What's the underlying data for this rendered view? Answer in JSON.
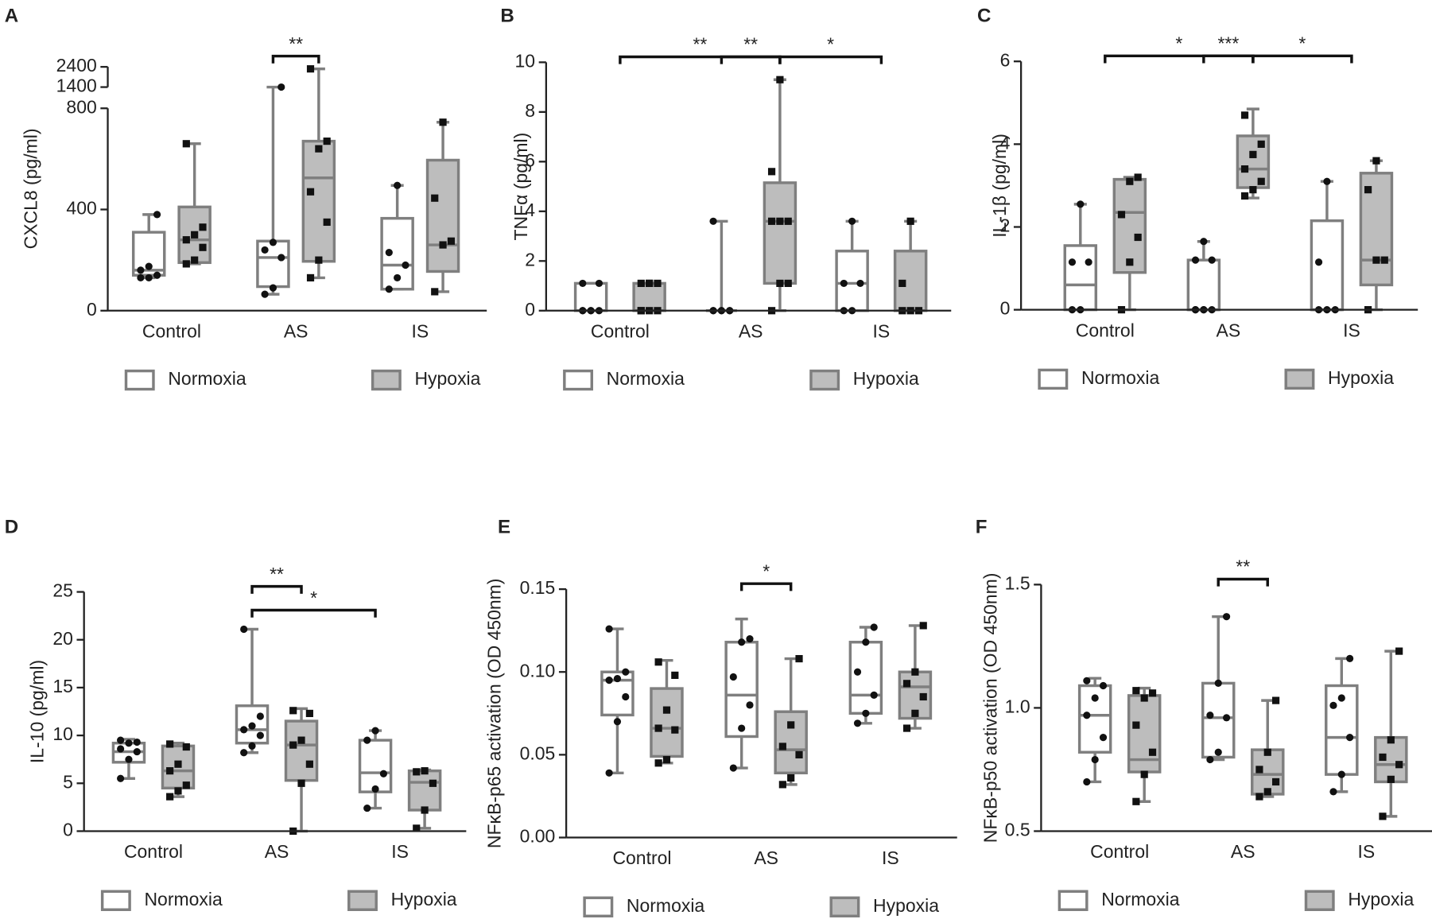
{
  "chart_data": [
    {
      "type": "box",
      "panel": "A",
      "ylabel": "CXCL8 (pg/ml)",
      "categories": [
        "Control",
        "AS",
        "IS"
      ],
      "ylim": [
        0,
        2400
      ],
      "axis_break": [
        800,
        1400
      ],
      "yticks": [
        0,
        400,
        800,
        1400,
        2400
      ],
      "series": [
        {
          "name": "Normoxia",
          "color": "#ffffff",
          "edgecolor": "#7f7f7f",
          "marker": "circle",
          "boxes": [
            {
              "min": 130,
              "q1": 140,
              "median": 160,
              "q3": 310,
              "max": 380,
              "points": [
                130,
                130,
                140,
                160,
                175,
                380
              ]
            },
            {
              "min": 65,
              "q1": 95,
              "median": 210,
              "q3": 275,
              "max": 1400,
              "points": [
                65,
                90,
                210,
                240,
                270,
                1400
              ]
            },
            {
              "min": 85,
              "q1": 85,
              "median": 180,
              "q3": 365,
              "max": 495,
              "points": [
                85,
                130,
                180,
                230,
                495
              ]
            }
          ]
        },
        {
          "name": "Hypoxia",
          "color": "#bdbdbd",
          "edgecolor": "#7f7f7f",
          "marker": "square",
          "boxes": [
            {
              "min": 185,
              "q1": 190,
              "median": 280,
              "q3": 410,
              "max": 660,
              "points": [
                185,
                200,
                250,
                280,
                300,
                330,
                660
              ]
            },
            {
              "min": 130,
              "q1": 195,
              "median": 525,
              "q3": 670,
              "max": 2300,
              "points": [
                130,
                200,
                350,
                470,
                640,
                670,
                2300
              ]
            },
            {
              "min": 75,
              "q1": 155,
              "median": 260,
              "q3": 595,
              "max": 745,
              "points": [
                75,
                260,
                275,
                445,
                745
              ]
            }
          ]
        }
      ],
      "significance": [
        {
          "label": "**",
          "from": [
            1,
            0
          ],
          "to": [
            1,
            1
          ]
        }
      ]
    },
    {
      "type": "box",
      "panel": "B",
      "ylabel": "TNFα (pg/ml)",
      "categories": [
        "Control",
        "AS",
        "IS"
      ],
      "ylim": [
        0,
        10
      ],
      "yticks": [
        0,
        2,
        4,
        6,
        8,
        10
      ],
      "series": [
        {
          "name": "Normoxia",
          "color": "#ffffff",
          "edgecolor": "#7f7f7f",
          "marker": "circle",
          "boxes": [
            {
              "min": 0,
              "q1": 0,
              "median": 0,
              "q3": 1.1,
              "max": 1.1,
              "points": [
                0,
                0,
                0,
                0,
                0,
                1.1,
                1.1
              ]
            },
            {
              "min": 0,
              "q1": 0,
              "median": 0,
              "q3": 0,
              "max": 3.6,
              "points": [
                0,
                0,
                0,
                0,
                0,
                0,
                3.6
              ]
            },
            {
              "min": 0,
              "q1": 0,
              "median": 1.1,
              "q3": 2.4,
              "max": 3.6,
              "points": [
                0,
                0,
                1.1,
                1.1,
                3.6
              ]
            }
          ]
        },
        {
          "name": "Hypoxia",
          "color": "#bdbdbd",
          "edgecolor": "#7f7f7f",
          "marker": "square",
          "boxes": [
            {
              "min": 0,
              "q1": 0,
              "median": 0,
              "q3": 1.1,
              "max": 1.1,
              "points": [
                0,
                0,
                0,
                0,
                1.1,
                1.1,
                1.1,
                1.1
              ]
            },
            {
              "min": 0,
              "q1": 1.1,
              "median": 3.6,
              "q3": 5.15,
              "max": 9.3,
              "points": [
                0,
                1.1,
                1.1,
                3.6,
                3.6,
                3.6,
                5.6,
                9.3
              ]
            },
            {
              "min": 0,
              "q1": 0,
              "median": 0,
              "q3": 2.4,
              "max": 3.6,
              "points": [
                0,
                0,
                0,
                1.1,
                3.6
              ]
            }
          ]
        }
      ],
      "significance": [
        {
          "label": "**",
          "from": [
            0,
            null
          ],
          "to": [
            1,
            1
          ]
        },
        {
          "label": "*",
          "from": [
            1,
            1
          ],
          "to": [
            2,
            null
          ]
        },
        {
          "label": "**",
          "from": [
            1,
            0
          ],
          "to": [
            1,
            1
          ]
        }
      ]
    },
    {
      "type": "box",
      "panel": "C",
      "ylabel": "IL-1β (pg/ml)",
      "categories": [
        "Control",
        "AS",
        "IS"
      ],
      "ylim": [
        0,
        6
      ],
      "yticks": [
        0,
        2,
        4,
        6
      ],
      "series": [
        {
          "name": "Normoxia",
          "color": "#ffffff",
          "edgecolor": "#7f7f7f",
          "marker": "circle",
          "boxes": [
            {
              "min": 0,
              "q1": 0,
              "median": 0.6,
              "q3": 1.55,
              "max": 2.55,
              "points": [
                0,
                0,
                1.15,
                1.15,
                2.55
              ]
            },
            {
              "min": 0,
              "q1": 0,
              "median": 0,
              "q3": 1.2,
              "max": 1.65,
              "points": [
                0,
                0,
                0,
                0,
                0,
                1.2,
                1.2,
                1.65
              ]
            },
            {
              "min": 0,
              "q1": 0,
              "median": 0,
              "q3": 2.15,
              "max": 3.1,
              "points": [
                0,
                0,
                0,
                1.15,
                3.1
              ]
            }
          ]
        },
        {
          "name": "Hypoxia",
          "color": "#bdbdbd",
          "edgecolor": "#7f7f7f",
          "marker": "square",
          "boxes": [
            {
              "min": 0,
              "q1": 0.9,
              "median": 2.35,
              "q3": 3.15,
              "max": 3.2,
              "points": [
                0,
                1.15,
                1.75,
                2.3,
                3.1,
                3.2
              ]
            },
            {
              "min": 2.7,
              "q1": 2.95,
              "median": 3.4,
              "q3": 4.2,
              "max": 4.85,
              "points": [
                2.75,
                2.9,
                3.1,
                3.4,
                3.75,
                4.0,
                4.7
              ]
            },
            {
              "min": 0,
              "q1": 0.6,
              "median": 1.2,
              "q3": 3.3,
              "max": 3.6,
              "points": [
                0,
                1.2,
                1.2,
                2.9,
                3.6
              ]
            }
          ]
        }
      ],
      "significance": [
        {
          "label": "*",
          "from": [
            0,
            null
          ],
          "to": [
            1,
            1
          ]
        },
        {
          "label": "*",
          "from": [
            1,
            1
          ],
          "to": [
            2,
            null
          ]
        },
        {
          "label": "***",
          "from": [
            1,
            0
          ],
          "to": [
            1,
            1
          ]
        }
      ]
    },
    {
      "type": "box",
      "panel": "D",
      "ylabel": "IL-10 (pg/ml)",
      "categories": [
        "Control",
        "AS",
        "IS"
      ],
      "ylim": [
        0,
        25
      ],
      "yticks": [
        0,
        5,
        10,
        15,
        20,
        25
      ],
      "series": [
        {
          "name": "Normoxia",
          "color": "#ffffff",
          "edgecolor": "#7f7f7f",
          "marker": "circle",
          "boxes": [
            {
              "min": 5.5,
              "q1": 7.2,
              "median": 8.3,
              "q3": 9.2,
              "max": 9.6,
              "points": [
                5.5,
                7.5,
                8.3,
                8.6,
                9.2,
                9.3,
                9.5
              ]
            },
            {
              "min": 8.2,
              "q1": 9.2,
              "median": 10.6,
              "q3": 13.1,
              "max": 21.1,
              "points": [
                8.2,
                8.9,
                10.0,
                10.6,
                11.0,
                12.0,
                21.1
              ]
            },
            {
              "min": 2.4,
              "q1": 4.1,
              "median": 6.1,
              "q3": 9.5,
              "max": 10.5,
              "points": [
                2.4,
                4.4,
                6.0,
                9.5,
                10.5
              ]
            }
          ]
        },
        {
          "name": "Hypoxia",
          "color": "#bdbdbd",
          "edgecolor": "#7f7f7f",
          "marker": "square",
          "boxes": [
            {
              "min": 3.6,
              "q1": 4.5,
              "median": 6.3,
              "q3": 8.9,
              "max": 9.2,
              "points": [
                3.6,
                4.2,
                4.8,
                6.3,
                7.0,
                8.8,
                9.1
              ]
            },
            {
              "min": 0,
              "q1": 5.3,
              "median": 9.0,
              "q3": 11.5,
              "max": 12.8,
              "points": [
                0,
                5.0,
                7.0,
                9.0,
                9.5,
                12.3,
                12.6
              ]
            },
            {
              "min": 0.3,
              "q1": 2.2,
              "median": 5.1,
              "q3": 6.3,
              "max": 6.4,
              "points": [
                0.3,
                2.2,
                5.0,
                6.2,
                6.3
              ]
            }
          ]
        }
      ],
      "significance": [
        {
          "label": "*",
          "from": [
            1,
            0
          ],
          "to": [
            2,
            0
          ]
        },
        {
          "label": "**",
          "from": [
            1,
            0
          ],
          "to": [
            1,
            1
          ]
        }
      ]
    },
    {
      "type": "box",
      "panel": "E",
      "ylabel": "NFκB-p65 activation (OD 450nm)",
      "categories": [
        "Control",
        "AS",
        "IS"
      ],
      "ylim": [
        0,
        0.15
      ],
      "yticks": [
        {
          "value": 0,
          "label": "0.00"
        },
        0.05,
        {
          "value": 0.1,
          "label": "0.10"
        },
        0.15
      ],
      "series": [
        {
          "name": "Normoxia",
          "color": "#ffffff",
          "edgecolor": "#7f7f7f",
          "marker": "circle",
          "boxes": [
            {
              "min": 0.039,
              "q1": 0.074,
              "median": 0.095,
              "q3": 0.1,
              "max": 0.126,
              "points": [
                0.039,
                0.07,
                0.085,
                0.095,
                0.096,
                0.1,
                0.126
              ]
            },
            {
              "min": 0.042,
              "q1": 0.061,
              "median": 0.086,
              "q3": 0.118,
              "max": 0.132,
              "points": [
                0.042,
                0.066,
                0.08,
                0.097,
                0.118,
                0.12
              ]
            },
            {
              "min": 0.069,
              "q1": 0.075,
              "median": 0.086,
              "q3": 0.118,
              "max": 0.127,
              "points": [
                0.069,
                0.075,
                0.086,
                0.1,
                0.118,
                0.127
              ]
            }
          ]
        },
        {
          "name": "Hypoxia",
          "color": "#bdbdbd",
          "edgecolor": "#7f7f7f",
          "marker": "square",
          "boxes": [
            {
              "min": 0.045,
              "q1": 0.049,
              "median": 0.066,
              "q3": 0.09,
              "max": 0.107,
              "points": [
                0.045,
                0.047,
                0.065,
                0.066,
                0.077,
                0.098,
                0.106
              ]
            },
            {
              "min": 0.032,
              "q1": 0.039,
              "median": 0.053,
              "q3": 0.076,
              "max": 0.108,
              "points": [
                0.032,
                0.036,
                0.05,
                0.055,
                0.068,
                0.108
              ]
            },
            {
              "min": 0.066,
              "q1": 0.072,
              "median": 0.091,
              "q3": 0.1,
              "max": 0.128,
              "points": [
                0.066,
                0.075,
                0.085,
                0.093,
                0.1,
                0.128
              ]
            }
          ]
        }
      ],
      "significance": [
        {
          "label": "*",
          "from": [
            1,
            0
          ],
          "to": [
            1,
            1
          ]
        }
      ]
    },
    {
      "type": "box",
      "panel": "F",
      "ylabel": "NFκB-p50 activation (OD 450nm)",
      "categories": [
        "Control",
        "AS",
        "IS"
      ],
      "ylim": [
        0.5,
        1.5
      ],
      "yticks": [
        0.5,
        {
          "value": 1,
          "label": "1.0"
        },
        1.5
      ],
      "series": [
        {
          "name": "Normoxia",
          "color": "#ffffff",
          "edgecolor": "#7f7f7f",
          "marker": "circle",
          "boxes": [
            {
              "min": 0.7,
              "q1": 0.82,
              "median": 0.97,
              "q3": 1.09,
              "max": 1.12,
              "points": [
                0.7,
                0.79,
                0.88,
                0.97,
                1.04,
                1.09,
                1.11
              ]
            },
            {
              "min": 0.79,
              "q1": 0.8,
              "median": 0.96,
              "q3": 1.1,
              "max": 1.37,
              "points": [
                0.79,
                0.82,
                0.96,
                0.97,
                1.1,
                1.37
              ]
            },
            {
              "min": 0.66,
              "q1": 0.73,
              "median": 0.88,
              "q3": 1.09,
              "max": 1.2,
              "points": [
                0.66,
                0.73,
                0.88,
                1.01,
                1.04,
                1.2
              ]
            }
          ]
        },
        {
          "name": "Hypoxia",
          "color": "#bdbdbd",
          "edgecolor": "#7f7f7f",
          "marker": "square",
          "boxes": [
            {
              "min": 0.62,
              "q1": 0.74,
              "median": 0.79,
              "q3": 1.05,
              "max": 1.08,
              "points": [
                0.62,
                0.73,
                0.82,
                0.93,
                1.04,
                1.06,
                1.07
              ]
            },
            {
              "min": 0.64,
              "q1": 0.65,
              "median": 0.73,
              "q3": 0.83,
              "max": 1.03,
              "points": [
                0.64,
                0.66,
                0.7,
                0.75,
                0.82,
                1.03
              ]
            },
            {
              "min": 0.56,
              "q1": 0.7,
              "median": 0.77,
              "q3": 0.88,
              "max": 1.23,
              "points": [
                0.56,
                0.71,
                0.77,
                0.8,
                0.87,
                1.23
              ]
            }
          ]
        }
      ],
      "significance": [
        {
          "label": "**",
          "from": [
            1,
            0
          ],
          "to": [
            1,
            1
          ]
        }
      ]
    }
  ]
}
